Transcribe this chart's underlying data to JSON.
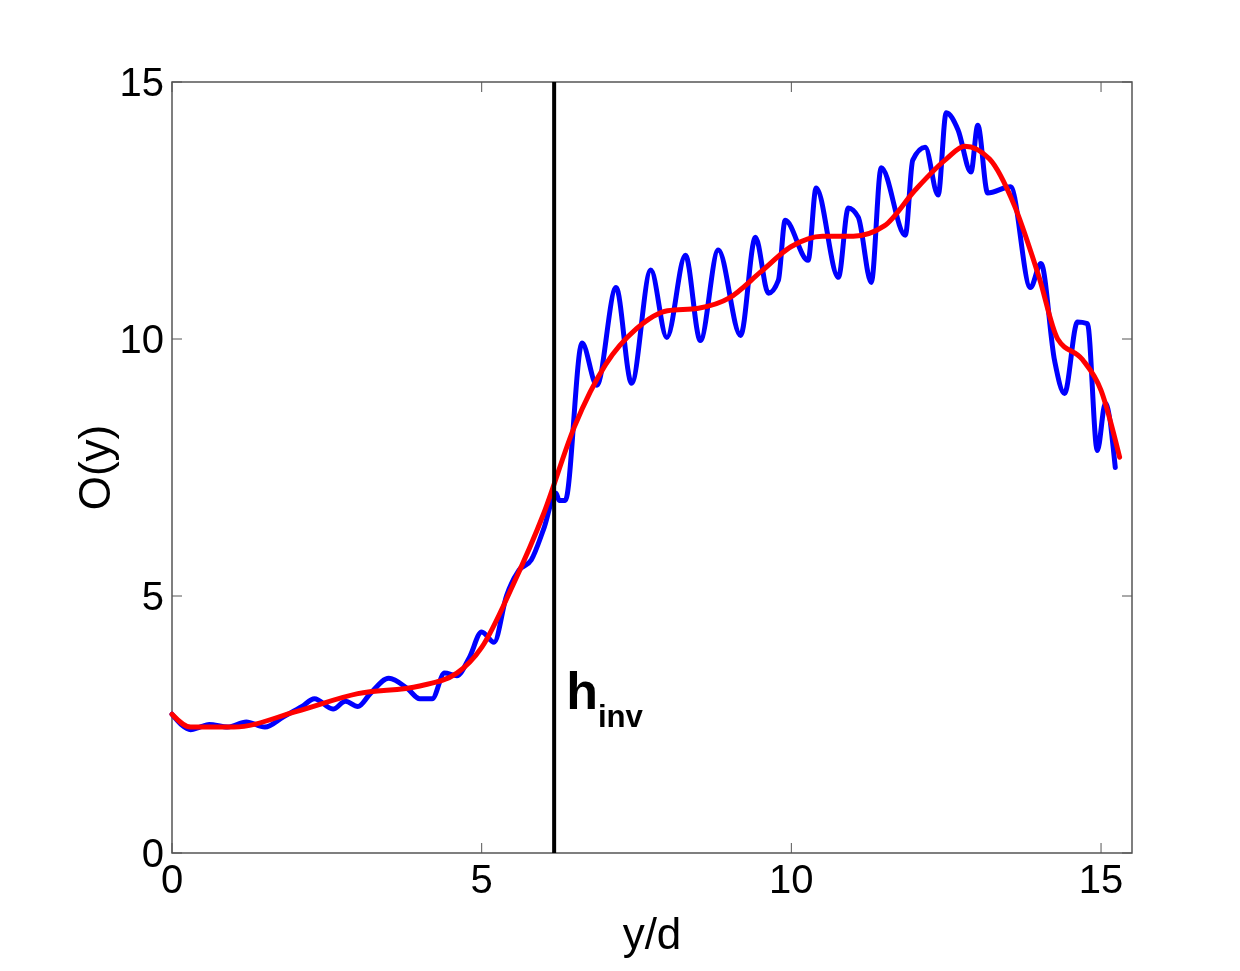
{
  "chart_data": {
    "type": "line",
    "xlabel": "y/d",
    "ylabel": "O(y)",
    "xlim": [
      0,
      15.5
    ],
    "ylim": [
      0,
      15
    ],
    "xticks": [
      0,
      5,
      10,
      15
    ],
    "yticks": [
      0,
      5,
      10,
      15
    ],
    "grid": false,
    "marker": "none",
    "line_style": "solid",
    "series": [
      {
        "color": "#0000ff",
        "x": [
          0,
          0.15,
          0.3,
          0.45,
          0.6,
          0.9,
          1.2,
          1.5,
          1.8,
          2.1,
          2.3,
          2.6,
          2.8,
          3.0,
          3.2,
          3.5,
          3.8,
          4.0,
          4.2,
          4.4,
          4.6,
          4.8,
          5.0,
          5.2,
          5.4,
          5.6,
          5.8,
          6.0,
          6.2,
          6.25,
          6.35,
          6.62,
          6.86,
          7.17,
          7.42,
          7.73,
          7.99,
          8.29,
          8.53,
          8.82,
          9.18,
          9.42,
          9.63,
          9.79,
          9.9,
          10.27,
          10.4,
          10.76,
          10.92,
          11.08,
          11.29,
          11.45,
          11.84,
          11.96,
          12.16,
          12.37,
          12.5,
          12.69,
          12.9,
          13.01,
          13.17,
          13.54,
          13.86,
          14.03,
          14.25,
          14.41,
          14.62,
          14.78,
          14.94,
          15.07,
          15.23
        ],
        "values": [
          2.7,
          2.5,
          2.4,
          2.45,
          2.5,
          2.45,
          2.55,
          2.45,
          2.65,
          2.85,
          3.0,
          2.8,
          2.95,
          2.85,
          3.1,
          3.4,
          3.2,
          3.0,
          3.0,
          3.5,
          3.45,
          3.8,
          4.3,
          4.1,
          5.0,
          5.5,
          5.7,
          6.3,
          7.0,
          6.86,
          6.86,
          9.92,
          9.1,
          11.0,
          9.14,
          11.34,
          10.03,
          11.63,
          9.97,
          11.73,
          10.07,
          11.98,
          10.89,
          11.14,
          12.31,
          11.53,
          12.94,
          11.2,
          12.55,
          12.37,
          11.1,
          13.33,
          12.02,
          13.48,
          13.73,
          12.8,
          14.4,
          14.07,
          13.25,
          14.16,
          12.84,
          12.96,
          11.0,
          11.47,
          9.58,
          8.94,
          10.33,
          10.3,
          7.83,
          8.75,
          7.5
        ]
      },
      {
        "color": "#ff0000",
        "x": [
          0,
          0.3,
          1,
          2,
          3,
          4,
          4.6,
          5,
          5.5,
          6,
          6.5,
          7,
          7.5,
          8,
          8.5,
          9,
          9.5,
          10,
          10.5,
          11,
          11.5,
          12,
          12.5,
          12.8,
          13.2,
          13.6,
          14,
          14.3,
          14.7,
          15,
          15.3
        ],
        "values": [
          2.7,
          2.45,
          2.45,
          2.75,
          3.1,
          3.25,
          3.5,
          4.0,
          5.2,
          6.6,
          8.3,
          9.5,
          10.2,
          10.55,
          10.6,
          10.8,
          11.3,
          11.8,
          12.0,
          12.0,
          12.2,
          12.9,
          13.5,
          13.75,
          13.5,
          12.6,
          11.2,
          10.0,
          9.6,
          9.0,
          7.7
        ]
      }
    ],
    "ref_lines": [
      {
        "axis": "x",
        "value": 6.17,
        "label": "h$_{inv}$",
        "color": "#000000",
        "line_style": "solid"
      }
    ]
  }
}
